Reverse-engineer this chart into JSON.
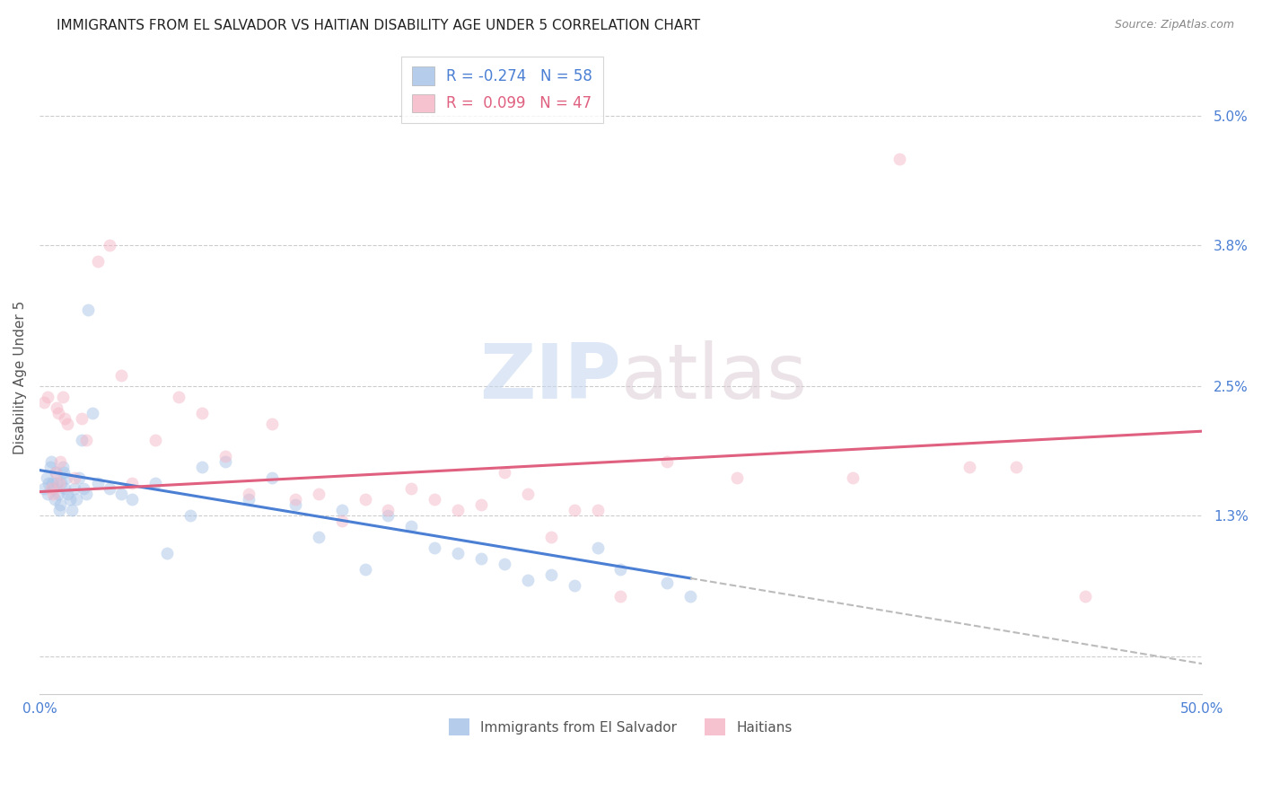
{
  "title": "IMMIGRANTS FROM EL SALVADOR VS HAITIAN DISABILITY AGE UNDER 5 CORRELATION CHART",
  "source": "Source: ZipAtlas.com",
  "ylabel": "Disability Age Under 5",
  "xmin": 0.0,
  "xmax": 50.0,
  "ymin": -0.35,
  "ymax": 5.5,
  "ytick_vals": [
    0.0,
    1.3,
    2.5,
    3.8,
    5.0
  ],
  "ytick_labels": [
    "",
    "1.3%",
    "2.5%",
    "3.8%",
    "5.0%"
  ],
  "color_salvador": "#a8c4e8",
  "color_haitian": "#f5b8c8",
  "color_salvador_line": "#4a7fd4",
  "color_haitian_line": "#e06080",
  "color_dashed": "#bbbbbb",
  "color_tick_label": "#4a7fd4",
  "color_grid": "#cccccc",
  "bg": "#ffffff",
  "scatter_size": 100,
  "scatter_alpha": 0.5,
  "salvador_R": -0.274,
  "salvador_N": 58,
  "haitian_R": 0.099,
  "haitian_N": 47,
  "sal_line_x0": 0.0,
  "sal_line_y0": 1.72,
  "sal_line_x1": 28.0,
  "sal_line_y1": 0.72,
  "sal_dash_x0": 28.0,
  "sal_dash_y0": 0.72,
  "sal_dash_x1": 50.0,
  "sal_dash_y1": -0.07,
  "hai_line_x0": 0.0,
  "hai_line_y0": 1.52,
  "hai_line_x1": 50.0,
  "hai_line_y1": 2.08,
  "salvador_x": [
    0.2,
    0.3,
    0.35,
    0.4,
    0.45,
    0.5,
    0.55,
    0.6,
    0.65,
    0.7,
    0.75,
    0.8,
    0.85,
    0.9,
    0.95,
    1.0,
    1.05,
    1.1,
    1.15,
    1.2,
    1.3,
    1.4,
    1.5,
    1.6,
    1.7,
    1.8,
    1.9,
    2.0,
    2.1,
    2.3,
    2.5,
    3.0,
    3.5,
    4.0,
    5.0,
    5.5,
    6.5,
    7.0,
    8.0,
    9.0,
    10.0,
    11.0,
    12.0,
    13.0,
    14.0,
    15.0,
    16.0,
    17.0,
    18.0,
    19.0,
    20.0,
    21.0,
    22.0,
    23.0,
    24.0,
    25.0,
    27.0,
    28.0
  ],
  "salvador_y": [
    1.55,
    1.65,
    1.5,
    1.6,
    1.75,
    1.8,
    1.6,
    1.55,
    1.45,
    1.7,
    1.6,
    1.5,
    1.35,
    1.4,
    1.6,
    1.75,
    1.7,
    1.55,
    1.65,
    1.5,
    1.45,
    1.35,
    1.55,
    1.45,
    1.65,
    2.0,
    1.55,
    1.5,
    3.2,
    2.25,
    1.6,
    1.55,
    1.5,
    1.45,
    1.6,
    0.95,
    1.3,
    1.75,
    1.8,
    1.45,
    1.65,
    1.4,
    1.1,
    1.35,
    0.8,
    1.3,
    1.2,
    1.0,
    0.95,
    0.9,
    0.85,
    0.7,
    0.75,
    0.65,
    1.0,
    0.8,
    0.68,
    0.55
  ],
  "haitian_x": [
    0.2,
    0.35,
    0.5,
    0.6,
    0.7,
    0.75,
    0.8,
    0.85,
    0.9,
    1.0,
    1.1,
    1.2,
    1.5,
    1.8,
    2.0,
    2.5,
    3.0,
    3.5,
    4.0,
    5.0,
    6.0,
    7.0,
    8.0,
    9.0,
    10.0,
    11.0,
    12.0,
    13.0,
    14.0,
    15.0,
    16.0,
    17.0,
    18.0,
    19.0,
    20.0,
    21.0,
    22.0,
    23.0,
    24.0,
    25.0,
    27.0,
    30.0,
    35.0,
    37.0,
    40.0,
    42.0,
    45.0
  ],
  "haitian_y": [
    2.35,
    2.4,
    1.55,
    1.5,
    1.7,
    2.3,
    2.25,
    1.6,
    1.8,
    2.4,
    2.2,
    2.15,
    1.65,
    2.2,
    2.0,
    3.65,
    3.8,
    2.6,
    1.6,
    2.0,
    2.4,
    2.25,
    1.85,
    1.5,
    2.15,
    1.45,
    1.5,
    1.25,
    1.45,
    1.35,
    1.55,
    1.45,
    1.35,
    1.4,
    1.7,
    1.5,
    1.1,
    1.35,
    1.35,
    0.55,
    1.8,
    1.65,
    1.65,
    4.6,
    1.75,
    1.75,
    0.55
  ]
}
